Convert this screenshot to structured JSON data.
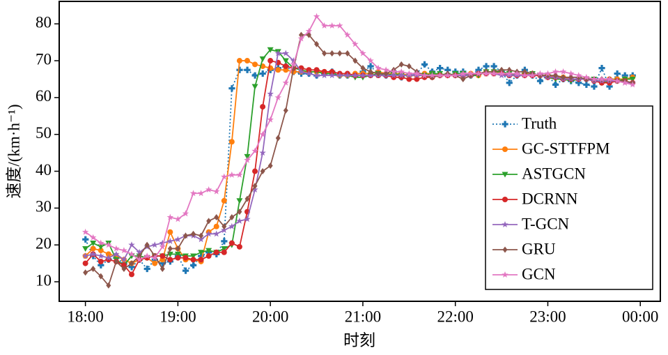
{
  "chart_data": {
    "type": "line",
    "x_label": "时刻",
    "y_label": "速度/(km·h⁻¹)",
    "x": [
      "18:00",
      "18:05",
      "18:10",
      "18:15",
      "18:20",
      "18:25",
      "18:30",
      "18:35",
      "18:40",
      "18:45",
      "18:50",
      "18:55",
      "19:00",
      "19:05",
      "19:10",
      "19:15",
      "19:20",
      "19:25",
      "19:30",
      "19:35",
      "19:40",
      "19:45",
      "19:50",
      "19:55",
      "20:00",
      "20:05",
      "20:10",
      "20:15",
      "20:20",
      "20:25",
      "20:30",
      "20:35",
      "20:40",
      "20:45",
      "20:50",
      "20:55",
      "21:00",
      "21:05",
      "21:10",
      "21:15",
      "21:20",
      "21:25",
      "21:30",
      "21:35",
      "21:40",
      "21:45",
      "21:50",
      "21:55",
      "22:00",
      "22:05",
      "22:10",
      "22:15",
      "22:20",
      "22:25",
      "22:30",
      "22:35",
      "22:40",
      "22:45",
      "22:50",
      "22:55",
      "23:00",
      "23:05",
      "23:10",
      "23:15",
      "23:20",
      "23:25",
      "23:30",
      "23:35",
      "23:40",
      "23:45",
      "23:50",
      "23:55"
    ],
    "xlim": [
      "17:43",
      "00:13"
    ],
    "xticks": [
      "18:00",
      "19:00",
      "20:00",
      "21:00",
      "22:00",
      "23:00",
      "00:00"
    ],
    "ylim": [
      4.7,
      86.1
    ],
    "yticks": [
      10,
      20,
      30,
      40,
      50,
      60,
      70,
      80
    ],
    "legend": "lower right",
    "series": [
      {
        "name": "Truth",
        "color": "#1f77b4",
        "marker": "plus",
        "linestyle": "dotted",
        "values": [
          21.5,
          17,
          14.5,
          16,
          16.5,
          15,
          14,
          16,
          13.5,
          16,
          15,
          15.5,
          17,
          13,
          14.5,
          17,
          18,
          17.5,
          21,
          62.5,
          67.5,
          67.5,
          66,
          66.5,
          67.5,
          68,
          68.5,
          67,
          66.5,
          66.5,
          66,
          66.5,
          67,
          66,
          66,
          66,
          67,
          68.5,
          66.5,
          66,
          67,
          65.5,
          66,
          66.5,
          69,
          67,
          68,
          67.5,
          67,
          67,
          66,
          67.5,
          68.5,
          68.5,
          67,
          64,
          66,
          67.5,
          66,
          64.5,
          66,
          63.5,
          65,
          64.5,
          64,
          63.5,
          63,
          68,
          63,
          66.5,
          66,
          66
        ]
      },
      {
        "name": "GC-STTFPM",
        "color": "#ff7f0e",
        "marker": "circle",
        "linestyle": "solid",
        "values": [
          17,
          19,
          18.5,
          17.5,
          17,
          16,
          15,
          16,
          16.5,
          15,
          16,
          23.5,
          19,
          16,
          16,
          15.5,
          23.5,
          25,
          32,
          48,
          70,
          70,
          69,
          68.5,
          68,
          67.5,
          67.5,
          67,
          67,
          67,
          67,
          67,
          66.5,
          66,
          66,
          66.5,
          66.5,
          66.5,
          67,
          66.5,
          66.5,
          66.5,
          66,
          66,
          66.5,
          66.5,
          66,
          66,
          66,
          66.5,
          66.5,
          66,
          67,
          67,
          66.5,
          66,
          66,
          66.5,
          66.5,
          66,
          66,
          65.5,
          65.5,
          65,
          65,
          65,
          64.5,
          64.5,
          65,
          65,
          65,
          65.5
        ]
      },
      {
        "name": "ASTGCN",
        "color": "#2ca02c",
        "marker": "triangle",
        "linestyle": "solid",
        "values": [
          19,
          20.5,
          19.5,
          20.5,
          16,
          14.5,
          17,
          17,
          16.5,
          17,
          17,
          17.5,
          17.5,
          17,
          17,
          18,
          18.5,
          18,
          19,
          20,
          32,
          44,
          63,
          70.5,
          73,
          72.5,
          70,
          68,
          67.5,
          67,
          67,
          66.5,
          66.5,
          66,
          66,
          65.5,
          65.5,
          66,
          66.5,
          66,
          66.5,
          66,
          66,
          66,
          66,
          66.5,
          66.5,
          66,
          66.5,
          66.5,
          66,
          66,
          67,
          67,
          67,
          66.5,
          66,
          66,
          66.5,
          66,
          65.5,
          65,
          65,
          64.5,
          65,
          65,
          65,
          64,
          64.5,
          64.5,
          65,
          65
        ]
      },
      {
        "name": "DCRNN",
        "color": "#d62728",
        "marker": "circle",
        "linestyle": "solid",
        "values": [
          15,
          17.5,
          15.5,
          16,
          15.5,
          14.5,
          12,
          16,
          16.5,
          17,
          17,
          16,
          16.5,
          16.5,
          16,
          16,
          17,
          18,
          18,
          20.5,
          19.5,
          29,
          40,
          57.5,
          70,
          69.5,
          68.5,
          68,
          68,
          67.5,
          67.5,
          67,
          67,
          66.5,
          66.5,
          66,
          66,
          66,
          66,
          66,
          65.5,
          65.5,
          65,
          65,
          65.5,
          65.5,
          66,
          66,
          66,
          66,
          66,
          66.5,
          66.5,
          66.5,
          66.5,
          66,
          66,
          66,
          66,
          66,
          65.5,
          65.5,
          65,
          65,
          65,
          65,
          64.5,
          64,
          64,
          64.5,
          64.5,
          64
        ]
      },
      {
        "name": "T-GCN",
        "color": "#9467bd",
        "marker": "star",
        "linestyle": "solid",
        "values": [
          17,
          17.5,
          17,
          16.5,
          17.5,
          16,
          20,
          18,
          19.5,
          20,
          20.5,
          21,
          21.5,
          22.5,
          22.5,
          21.5,
          23,
          23,
          24,
          25,
          26.5,
          27,
          35,
          45,
          61,
          72,
          72,
          70,
          67,
          66.5,
          66,
          66,
          66,
          66,
          66,
          66,
          66,
          66,
          66,
          66,
          66,
          66,
          66,
          66,
          66,
          66,
          66,
          66,
          66,
          66,
          66,
          66.5,
          66.5,
          66.5,
          66,
          66,
          66,
          66,
          66.5,
          66,
          65.5,
          65.5,
          65,
          65,
          65,
          65,
          64.5,
          64.5,
          64.5,
          64.5,
          64,
          64
        ]
      },
      {
        "name": "GRU",
        "color": "#8c564b",
        "marker": "diamond",
        "linestyle": "solid",
        "values": [
          12.5,
          13.5,
          11.5,
          9,
          15.5,
          13.5,
          15,
          17,
          20,
          17,
          13.5,
          19,
          19,
          22.5,
          23,
          22.5,
          26.5,
          27.5,
          25,
          27.5,
          29,
          32.5,
          36,
          40,
          41.5,
          49,
          56.5,
          68,
          77,
          77,
          74.5,
          72,
          72,
          72,
          72,
          70,
          68,
          67,
          66.5,
          66.5,
          67.5,
          69,
          68.5,
          67,
          66,
          65.5,
          66,
          66.5,
          66,
          65,
          66,
          66.5,
          67,
          67,
          67.5,
          67.5,
          67,
          67,
          66.5,
          66,
          66,
          66,
          65.5,
          65.5,
          65.5,
          65,
          65,
          65,
          65,
          64.5,
          64.5,
          64
        ]
      },
      {
        "name": "GCN",
        "color": "#e377c2",
        "marker": "star",
        "linestyle": "solid",
        "values": [
          23.5,
          22,
          20.5,
          20,
          19,
          18.5,
          17.5,
          16,
          17,
          16.5,
          19.5,
          27.5,
          27,
          28.5,
          34,
          34,
          35,
          34.5,
          38.5,
          39,
          39,
          43,
          45.5,
          50,
          54,
          60,
          64,
          69,
          76,
          78,
          82,
          79.5,
          79.5,
          79.5,
          77,
          74.5,
          72,
          70,
          68,
          67.5,
          67,
          67,
          66.5,
          66.5,
          66,
          66,
          66,
          66,
          66,
          66.5,
          66.5,
          66.5,
          66.5,
          66.5,
          66.5,
          66.5,
          66.5,
          66,
          66,
          66.5,
          66.5,
          67,
          67,
          66.5,
          66,
          65.5,
          65,
          65,
          65,
          64.5,
          64,
          63.5
        ]
      }
    ]
  }
}
